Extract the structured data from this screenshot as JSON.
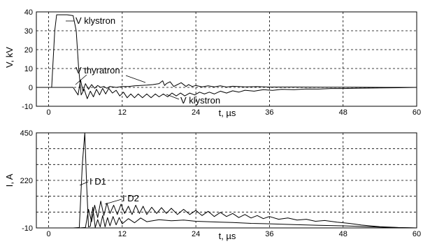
{
  "chart_data": [
    {
      "type": "line",
      "xlabel": "t, µs",
      "ylabel": "V, kV",
      "xlim": [
        -2,
        60
      ],
      "ylim": [
        -10,
        40
      ],
      "xticks": [
        0,
        12,
        24,
        36,
        48,
        60
      ],
      "yticks": [
        -10,
        0,
        10,
        20,
        30,
        40
      ],
      "grid": true,
      "series": [
        {
          "name": "V klystron",
          "x": [
            -2,
            0.5,
            1.0,
            1.3,
            2.0,
            3.0,
            4.0,
            4.5,
            4.9,
            5.3,
            5.8,
            6.3,
            6.8,
            7.3,
            7.8,
            8.3,
            8.8,
            9.3,
            9.8,
            10.4,
            11.0,
            11.6,
            12.2,
            12.8,
            13.4,
            14.0,
            14.6,
            15.3,
            16.0,
            16.7,
            17.4,
            18.0,
            18.7,
            19.4,
            20.1,
            20.8,
            21.5,
            22.2,
            23.0,
            23.8,
            24.6,
            25.4,
            26.2,
            27.0,
            28.0,
            29.0,
            30.0,
            31.0,
            32.0,
            33.5,
            35.0,
            36.5,
            38.0,
            40.0,
            42.0,
            44.0,
            46.0,
            48.0,
            51.0,
            54.0,
            57.0,
            60.0
          ],
          "y": [
            0,
            0,
            30,
            38.5,
            38.5,
            38.5,
            38.0,
            30,
            10,
            -4,
            -1,
            -6,
            -2,
            -5,
            -1,
            -4,
            -0.5,
            -3.5,
            -0.5,
            -3.0,
            -1.5,
            -4.5,
            -2.5,
            -5.5,
            -3.5,
            -5.5,
            -3.5,
            -5.5,
            -3.5,
            -5.5,
            -3.5,
            -5.0,
            -3.5,
            -5.0,
            -3.0,
            -4.5,
            -3.0,
            -4.5,
            -3.0,
            -4.0,
            -2.5,
            -3.5,
            -2.5,
            -3.5,
            -2.0,
            -3.0,
            -1.8,
            -2.5,
            -1.5,
            -2.0,
            -1.2,
            -1.6,
            -1.0,
            -1.2,
            -0.8,
            -0.9,
            -0.6,
            -0.6,
            -0.4,
            -0.3,
            -0.2,
            0
          ]
        },
        {
          "name": "V thyratron",
          "x": [
            -2,
            4.0,
            4.8,
            5.2,
            5.6,
            6.0,
            6.5,
            7.0,
            7.5,
            8.0,
            8.5,
            9.0,
            9.5,
            10.0,
            11.0,
            12.0,
            13.0,
            14.0,
            15.0,
            16.0,
            17.0,
            18.0,
            18.6,
            18.9,
            19.2,
            19.8,
            20.4,
            21.0,
            21.6,
            22.4,
            22.8,
            23.4,
            24.0,
            25.0,
            26.0,
            27.0,
            28.0,
            29.0,
            30.0,
            32.0,
            34.0,
            36.0,
            40.0,
            45.0,
            50.0,
            55.0,
            60.0
          ],
          "y": [
            0,
            0,
            -4,
            4,
            -2,
            2,
            -1,
            1.5,
            -0.5,
            1,
            0,
            0.5,
            -0.5,
            0.5,
            0,
            0.5,
            0.5,
            0.8,
            1.0,
            1.2,
            1.5,
            2.0,
            3.5,
            1.0,
            2.0,
            3.0,
            0.5,
            1.5,
            2.5,
            0.5,
            1.5,
            0.5,
            1.0,
            0.3,
            0.8,
            0.3,
            0.8,
            0.2,
            0.6,
            0.3,
            0.4,
            0.2,
            0.2,
            0.1,
            0.1,
            0,
            0
          ]
        }
      ]
    },
    {
      "type": "line",
      "xlabel": "t, µs",
      "ylabel": "I, A",
      "xlim": [
        -2,
        60
      ],
      "ylim": [
        -10,
        450
      ],
      "xticks": [
        0,
        12,
        24,
        36,
        48,
        60
      ],
      "yticks": [
        -10,
        220,
        450
      ],
      "grid": true,
      "series": [
        {
          "name": "I D1",
          "x": [
            -2,
            4.0,
            5.0,
            5.5,
            5.9,
            6.2,
            6.5,
            6.8,
            7.2,
            7.6,
            8.0,
            8.4,
            8.8,
            9.2,
            9.6,
            10.0,
            10.5,
            11.0,
            11.5,
            12.0,
            13.0,
            14.0,
            15.0,
            16.0,
            18.0,
            20.0,
            22.0,
            24.0,
            26.0,
            28.0,
            30.0,
            33.0,
            36.0,
            40.0,
            44.0,
            48.0,
            52.0,
            56.0,
            60.0
          ],
          "y": [
            -10,
            -10,
            -8,
            300,
            450,
            200,
            -5,
            -2,
            90,
            -8,
            30,
            -5,
            50,
            -5,
            40,
            0,
            45,
            5,
            40,
            10,
            35,
            15,
            38,
            20,
            30,
            25,
            28,
            22,
            20,
            18,
            16,
            12,
            10,
            6,
            3,
            0,
            -4,
            -8,
            -10
          ]
        },
        {
          "name": "I D2",
          "x": [
            -2,
            4.0,
            5.0,
            6.0,
            6.5,
            7.0,
            7.5,
            8.0,
            8.5,
            9.0,
            9.5,
            10.0,
            10.6,
            11.2,
            11.8,
            12.4,
            13.0,
            13.6,
            14.2,
            14.8,
            15.4,
            16.0,
            16.8,
            17.6,
            18.4,
            19.2,
            20.0,
            21.0,
            22.0,
            23.0,
            24.0,
            25.0,
            26.0,
            27.0,
            28.0,
            29.0,
            30.0,
            31.0,
            32.0,
            33.0,
            34.0,
            35.0,
            36.0,
            37.5,
            39.0,
            40.5,
            42.0,
            43.5,
            45.0,
            47.0,
            49.0,
            51.0,
            54.0,
            57.0,
            60.0
          ],
          "y": [
            -10,
            -10,
            -10,
            -8,
            80,
            20,
            100,
            40,
            120,
            50,
            110,
            60,
            100,
            55,
            105,
            60,
            95,
            55,
            100,
            60,
            95,
            55,
            90,
            60,
            88,
            60,
            85,
            55,
            80,
            55,
            75,
            50,
            70,
            45,
            65,
            45,
            60,
            40,
            55,
            38,
            50,
            35,
            45,
            32,
            38,
            28,
            32,
            22,
            26,
            18,
            12,
            4,
            -4,
            -8,
            -10
          ]
        }
      ]
    }
  ],
  "annotations": [
    {
      "text": "V klystron"
    },
    {
      "text": "V thyratron"
    },
    {
      "text": "V klystron"
    },
    {
      "text": "I D1"
    },
    {
      "text": "I D2"
    }
  ]
}
